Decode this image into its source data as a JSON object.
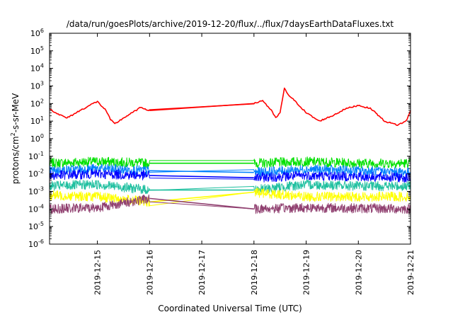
{
  "chart_data": {
    "type": "line",
    "title": "/data/run/goesPlots/archive/2019-12-20/flux/../flux/7daysEarthDataFluxes.txt",
    "xlabel": "Coordinated Universal Time (UTC)",
    "ylabel_base": "protons/cm",
    "ylabel_sup": "2",
    "ylabel_rest": "-s-sr-MeV",
    "x_range": [
      "2019-12-14 02:00",
      "2019-12-21 00:00"
    ],
    "x_ticks": [
      "2019-12-15",
      "2019-12-16",
      "2019-12-17",
      "2019-12-18",
      "2019-12-19",
      "2019-12-20",
      "2019-12-21"
    ],
    "y_scale": "log",
    "y_range": [
      1e-06,
      1000000.0
    ],
    "y_ticks": [
      {
        "base": "10",
        "exp": "6"
      },
      {
        "base": "10",
        "exp": "5"
      },
      {
        "base": "10",
        "exp": "4"
      },
      {
        "base": "10",
        "exp": "3"
      },
      {
        "base": "10",
        "exp": "2"
      },
      {
        "base": "10",
        "exp": "1"
      },
      {
        "base": "10",
        "exp": "0"
      },
      {
        "base": "10",
        "exp": "-1"
      },
      {
        "base": "10",
        "exp": "-2"
      },
      {
        "base": "10",
        "exp": "-3"
      },
      {
        "base": "10",
        "exp": "-4"
      },
      {
        "base": "10",
        "exp": "-5"
      },
      {
        "base": "10",
        "exp": "-6"
      }
    ],
    "gap": [
      "2019-12-16 00:00",
      "2019-12-18 00:00"
    ],
    "series": [
      {
        "color": "#00e000",
        "points": [
          [
            "2019-12-14 02:00",
            0.04
          ],
          [
            "2019-12-15 00:00",
            0.05
          ],
          [
            "2019-12-16 00:00",
            0.04
          ],
          [
            "2019-12-18 00:00",
            0.04
          ],
          [
            "2019-12-19 00:00",
            0.05
          ],
          [
            "2019-12-20 00:00",
            0.04
          ],
          [
            "2019-12-21 00:00",
            0.04
          ]
        ]
      },
      {
        "color": "#0080ff",
        "points": [
          [
            "2019-12-14 02:00",
            0.015
          ],
          [
            "2019-12-15 00:00",
            0.02
          ],
          [
            "2019-12-16 00:00",
            0.015
          ],
          [
            "2019-12-18 00:00",
            0.012
          ],
          [
            "2019-12-19 00:00",
            0.018
          ],
          [
            "2019-12-20 00:00",
            0.015
          ],
          [
            "2019-12-21 00:00",
            0.012
          ]
        ]
      },
      {
        "color": "#0000ff",
        "points": [
          [
            "2019-12-14 02:00",
            0.008
          ],
          [
            "2019-12-15 00:00",
            0.01
          ],
          [
            "2019-12-16 00:00",
            0.008
          ],
          [
            "2019-12-18 00:00",
            0.006
          ],
          [
            "2019-12-19 00:00",
            0.008
          ],
          [
            "2019-12-20 00:00",
            0.007
          ],
          [
            "2019-12-21 00:00",
            0.006
          ]
        ]
      },
      {
        "color": "#20c0a0",
        "points": [
          [
            "2019-12-14 02:00",
            0.002
          ],
          [
            "2019-12-15 00:00",
            0.0025
          ],
          [
            "2019-12-16 00:00",
            0.0012
          ],
          [
            "2019-12-18 00:00",
            0.0012
          ],
          [
            "2019-12-19 00:00",
            0.0025
          ],
          [
            "2019-12-20 00:00",
            0.002
          ],
          [
            "2019-12-21 00:00",
            0.002
          ]
        ]
      },
      {
        "color": "#ffff00",
        "points": [
          [
            "2019-12-14 02:00",
            0.0006
          ],
          [
            "2019-12-15 00:00",
            0.0005
          ],
          [
            "2019-12-16 00:00",
            0.00025
          ],
          [
            "2019-12-18 00:00",
            0.0009
          ],
          [
            "2019-12-19 00:00",
            0.0005
          ],
          [
            "2019-12-20 00:00",
            0.0005
          ],
          [
            "2019-12-21 00:00",
            0.0005
          ]
        ]
      },
      {
        "color": "#904070",
        "points": [
          [
            "2019-12-14 02:00",
            0.0001
          ],
          [
            "2019-12-15 00:00",
            0.00012
          ],
          [
            "2019-12-16 00:00",
            0.0004
          ],
          [
            "2019-12-18 00:00",
            0.0001
          ],
          [
            "2019-12-19 00:00",
            0.00012
          ],
          [
            "2019-12-20 00:00",
            0.00011
          ],
          [
            "2019-12-21 00:00",
            0.0001
          ]
        ]
      },
      {
        "color": "#ff0000",
        "points": [
          [
            "2019-12-14 02:00",
            50
          ],
          [
            "2019-12-14 06:00",
            25
          ],
          [
            "2019-12-14 10:00",
            15
          ],
          [
            "2019-12-14 16:00",
            40
          ],
          [
            "2019-12-14 22:00",
            100
          ],
          [
            "2019-12-15 00:00",
            130
          ],
          [
            "2019-12-15 04:00",
            40
          ],
          [
            "2019-12-15 06:00",
            12
          ],
          [
            "2019-12-15 08:00",
            7
          ],
          [
            "2019-12-15 12:00",
            15
          ],
          [
            "2019-12-15 16:00",
            30
          ],
          [
            "2019-12-15 20:00",
            60
          ],
          [
            "2019-12-15 22:00",
            50
          ],
          [
            "2019-12-16 00:00",
            40
          ],
          [
            "2019-12-18 00:00",
            100
          ],
          [
            "2019-12-18 04:00",
            150
          ],
          [
            "2019-12-18 08:00",
            40
          ],
          [
            "2019-12-18 10:00",
            15
          ],
          [
            "2019-12-18 12:00",
            30
          ],
          [
            "2019-12-18 14:00",
            700
          ],
          [
            "2019-12-18 16:00",
            300
          ],
          [
            "2019-12-18 20:00",
            100
          ],
          [
            "2019-12-19 00:00",
            30
          ],
          [
            "2019-12-19 06:00",
            10
          ],
          [
            "2019-12-19 12:00",
            20
          ],
          [
            "2019-12-19 18:00",
            50
          ],
          [
            "2019-12-20 00:00",
            80
          ],
          [
            "2019-12-20 06:00",
            50
          ],
          [
            "2019-12-20 12:00",
            10
          ],
          [
            "2019-12-20 18:00",
            6
          ],
          [
            "2019-12-20 22:00",
            10
          ],
          [
            "2019-12-21 00:00",
            40
          ]
        ]
      }
    ]
  }
}
